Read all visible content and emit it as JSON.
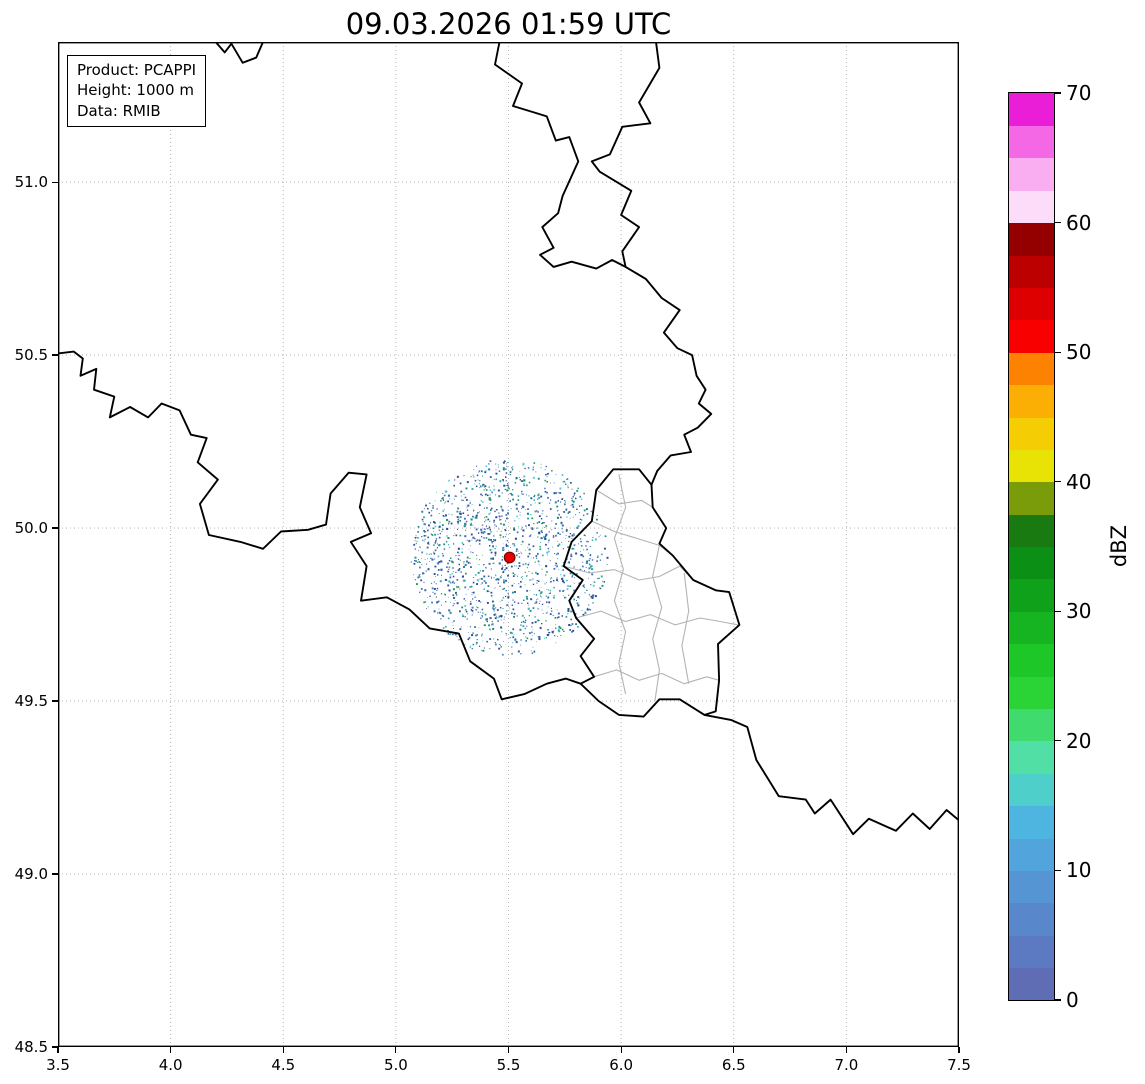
{
  "title": "09.03.2026 01:59 UTC",
  "info_box": {
    "lines": [
      "Product: PCAPPI",
      "Height: 1000 m",
      "Data: RMIB"
    ]
  },
  "axes": {
    "xlim": [
      3.5,
      7.5
    ],
    "ylim": [
      48.5,
      51.405
    ],
    "xticks": [
      3.5,
      4.0,
      4.5,
      5.0,
      5.5,
      6.0,
      6.5,
      7.0,
      7.5
    ],
    "xtick_labels": [
      "3.5",
      "4.0",
      "4.5",
      "5.0",
      "5.5",
      "6.0",
      "6.5",
      "7.0",
      "7.5"
    ],
    "yticks": [
      48.5,
      49.0,
      49.5,
      50.0,
      50.5,
      51.0
    ],
    "ytick_labels": [
      "48.5",
      "49.0",
      "49.5",
      "50.0",
      "50.5",
      "51.0"
    ],
    "grid_style": "dotted",
    "grid_color": "#ababab"
  },
  "colorbar": {
    "label": "dBZ",
    "min": 0,
    "max": 70,
    "ticks": [
      0,
      10,
      20,
      30,
      40,
      50,
      60,
      70
    ],
    "tick_labels": [
      "0",
      "10",
      "20",
      "30",
      "40",
      "50",
      "60",
      "70"
    ],
    "colors_bottom_to_top": [
      "#5e6db4",
      "#5b7ac1",
      "#5887cb",
      "#5595d4",
      "#51a4dc",
      "#4db5e0",
      "#4fcfca",
      "#52dfa5",
      "#3fdc6d",
      "#2ad437",
      "#1ec728",
      "#17b421",
      "#10a11a",
      "#0b8f14",
      "#187a10",
      "#7b9c0a",
      "#e8e304",
      "#f5cd04",
      "#fbae03",
      "#fd8202",
      "#f90000",
      "#de0000",
      "#bc0000",
      "#940000",
      "#fcdcf9",
      "#f9aef2",
      "#f467e5",
      "#ea1ed6"
    ]
  },
  "radar": {
    "site_lon": 5.505,
    "site_lat": 49.915,
    "marker_color": "#e60000",
    "marker_edge_color": "#7f0000",
    "coverage_radius_deg_lat": 0.285,
    "speckle_count": 1500,
    "seed": 1337,
    "speckle_colors": [
      {
        "color": "#2c4f9c",
        "weight": 0.3
      },
      {
        "color": "#3c68b4",
        "weight": 0.2
      },
      {
        "color": "#4e86c6",
        "weight": 0.12
      },
      {
        "color": "#1d8f85",
        "weight": 0.18
      },
      {
        "color": "#27b3a2",
        "weight": 0.1
      },
      {
        "color": "#1d9e55",
        "weight": 0.06
      },
      {
        "color": "#56c8dd",
        "weight": 0.04
      }
    ]
  },
  "map": {
    "border_color": "#000000",
    "admin_color": "#b3b3b3",
    "borders": [
      [
        [
          3.5,
          50.505
        ],
        [
          3.57,
          50.51
        ],
        [
          3.61,
          50.49
        ],
        [
          3.6,
          50.44
        ],
        [
          3.67,
          50.46
        ],
        [
          3.66,
          50.4
        ],
        [
          3.75,
          50.38
        ],
        [
          3.73,
          50.32
        ],
        [
          3.82,
          50.35
        ],
        [
          3.9,
          50.32
        ],
        [
          3.96,
          50.36
        ],
        [
          4.04,
          50.34
        ],
        [
          4.09,
          50.27
        ],
        [
          4.16,
          50.26
        ],
        [
          4.12,
          50.19
        ],
        [
          4.21,
          50.14
        ],
        [
          4.13,
          50.07
        ],
        [
          4.17,
          49.98
        ],
        [
          4.31,
          49.96
        ],
        [
          4.41,
          49.94
        ],
        [
          4.49,
          49.99
        ],
        [
          4.61,
          49.995
        ],
        [
          4.69,
          50.01
        ],
        [
          4.71,
          50.1
        ],
        [
          4.79,
          50.16
        ],
        [
          4.87,
          50.155
        ],
        [
          4.84,
          50.06
        ],
        [
          4.89,
          49.985
        ],
        [
          4.8,
          49.96
        ],
        [
          4.87,
          49.89
        ],
        [
          4.845,
          49.79
        ],
        [
          4.96,
          49.8
        ],
        [
          5.06,
          49.765
        ],
        [
          5.15,
          49.71
        ],
        [
          5.28,
          49.695
        ],
        [
          5.33,
          49.615
        ],
        [
          5.435,
          49.565
        ],
        [
          5.47,
          49.505
        ],
        [
          5.57,
          49.52
        ],
        [
          5.67,
          49.55
        ],
        [
          5.755,
          49.565
        ],
        [
          5.82,
          49.55
        ],
        [
          5.9,
          49.5
        ],
        [
          5.99,
          49.46
        ],
        [
          6.1,
          49.455
        ],
        [
          6.17,
          49.505
        ],
        [
          6.26,
          49.505
        ],
        [
          6.37,
          49.46
        ],
        [
          6.49,
          49.445
        ],
        [
          6.56,
          49.425
        ],
        [
          6.6,
          49.33
        ],
        [
          6.7,
          49.225
        ],
        [
          6.82,
          49.215
        ],
        [
          6.86,
          49.175
        ],
        [
          6.93,
          49.215
        ],
        [
          7.03,
          49.115
        ],
        [
          7.1,
          49.16
        ],
        [
          7.22,
          49.125
        ],
        [
          7.295,
          49.175
        ],
        [
          7.37,
          49.13
        ],
        [
          7.445,
          49.185
        ],
        [
          7.5,
          49.155
        ]
      ],
      [
        [
          4.2,
          51.405
        ],
        [
          4.24,
          51.375
        ],
        [
          4.27,
          51.4
        ],
        [
          4.32,
          51.345
        ],
        [
          4.38,
          51.36
        ],
        [
          4.41,
          51.405
        ]
      ],
      [
        [
          5.46,
          51.405
        ],
        [
          5.44,
          51.34
        ],
        [
          5.56,
          51.285
        ],
        [
          5.52,
          51.22
        ],
        [
          5.62,
          51.2
        ],
        [
          5.67,
          51.19
        ],
        [
          5.71,
          51.12
        ],
        [
          5.77,
          51.13
        ],
        [
          5.81,
          51.06
        ],
        [
          5.74,
          50.96
        ],
        [
          5.72,
          50.91
        ],
        [
          5.65,
          50.87
        ],
        [
          5.7,
          50.81
        ],
        [
          5.64,
          50.79
        ],
        [
          5.7,
          50.755
        ],
        [
          5.78,
          50.77
        ],
        [
          5.89,
          50.75
        ],
        [
          5.96,
          50.775
        ],
        [
          6.02,
          50.755
        ]
      ],
      [
        [
          6.02,
          50.755
        ],
        [
          6.005,
          50.8
        ],
        [
          6.08,
          50.87
        ],
        [
          6.0,
          50.905
        ],
        [
          6.045,
          50.975
        ],
        [
          5.905,
          51.03
        ],
        [
          5.87,
          51.06
        ],
        [
          5.95,
          51.08
        ],
        [
          6.005,
          51.16
        ],
        [
          6.13,
          51.17
        ],
        [
          6.08,
          51.23
        ],
        [
          6.17,
          51.33
        ],
        [
          6.155,
          51.405
        ]
      ],
      [
        [
          6.02,
          50.755
        ],
        [
          6.11,
          50.72
        ],
        [
          6.18,
          50.665
        ],
        [
          6.26,
          50.63
        ],
        [
          6.19,
          50.565
        ],
        [
          6.25,
          50.52
        ],
        [
          6.315,
          50.5
        ],
        [
          6.335,
          50.44
        ],
        [
          6.375,
          50.4
        ],
        [
          6.345,
          50.36
        ],
        [
          6.4,
          50.33
        ],
        [
          6.34,
          50.29
        ],
        [
          6.28,
          50.27
        ],
        [
          6.31,
          50.22
        ],
        [
          6.22,
          50.21
        ],
        [
          6.16,
          50.165
        ],
        [
          6.135,
          50.125
        ]
      ],
      [
        [
          6.135,
          50.125
        ],
        [
          6.14,
          50.06
        ],
        [
          6.2,
          50.0
        ],
        [
          6.17,
          49.955
        ],
        [
          6.23,
          49.92
        ],
        [
          6.32,
          49.85
        ],
        [
          6.42,
          49.82
        ],
        [
          6.48,
          49.815
        ],
        [
          6.525,
          49.72
        ],
        [
          6.43,
          49.665
        ],
        [
          6.435,
          49.56
        ],
        [
          6.42,
          49.47
        ],
        [
          6.37,
          49.46
        ]
      ],
      [
        [
          6.135,
          50.125
        ],
        [
          6.08,
          50.17
        ],
        [
          5.965,
          50.17
        ],
        [
          5.89,
          50.11
        ],
        [
          5.87,
          50.02
        ],
        [
          5.78,
          49.96
        ],
        [
          5.745,
          49.89
        ],
        [
          5.83,
          49.85
        ],
        [
          5.77,
          49.79
        ],
        [
          5.8,
          49.74
        ],
        [
          5.88,
          49.68
        ],
        [
          5.82,
          49.63
        ],
        [
          5.88,
          49.57
        ],
        [
          5.82,
          49.55
        ]
      ]
    ],
    "admin_borders": [
      [
        [
          5.99,
          50.155
        ],
        [
          6.02,
          50.06
        ],
        [
          5.97,
          49.97
        ],
        [
          6.01,
          49.88
        ],
        [
          5.97,
          49.79
        ],
        [
          6.02,
          49.7
        ],
        [
          5.99,
          49.61
        ],
        [
          6.02,
          49.52
        ]
      ],
      [
        [
          6.17,
          49.95
        ],
        [
          6.14,
          49.86
        ],
        [
          6.18,
          49.77
        ],
        [
          6.14,
          49.68
        ],
        [
          6.17,
          49.59
        ],
        [
          6.15,
          49.5
        ]
      ],
      [
        [
          5.89,
          50.11
        ],
        [
          5.99,
          50.07
        ],
        [
          6.09,
          50.08
        ],
        [
          6.14,
          50.06
        ]
      ],
      [
        [
          5.87,
          50.02
        ],
        [
          5.97,
          49.99
        ],
        [
          6.07,
          49.97
        ],
        [
          6.17,
          49.95
        ],
        [
          6.23,
          49.92
        ]
      ],
      [
        [
          5.745,
          49.89
        ],
        [
          5.86,
          49.87
        ],
        [
          5.97,
          49.88
        ],
        [
          6.08,
          49.85
        ],
        [
          6.17,
          49.86
        ],
        [
          6.26,
          49.89
        ],
        [
          6.32,
          49.85
        ]
      ],
      [
        [
          5.8,
          49.74
        ],
        [
          5.91,
          49.76
        ],
        [
          6.02,
          49.73
        ],
        [
          6.13,
          49.75
        ],
        [
          6.24,
          49.72
        ],
        [
          6.35,
          49.74
        ],
        [
          6.44,
          49.73
        ],
        [
          6.52,
          49.72
        ]
      ],
      [
        [
          5.88,
          49.57
        ],
        [
          5.98,
          49.59
        ],
        [
          6.08,
          49.56
        ],
        [
          6.18,
          49.58
        ],
        [
          6.28,
          49.55
        ],
        [
          6.38,
          49.57
        ],
        [
          6.435,
          49.56
        ]
      ],
      [
        [
          6.28,
          49.87
        ],
        [
          6.3,
          49.76
        ],
        [
          6.27,
          49.66
        ],
        [
          6.3,
          49.55
        ]
      ]
    ]
  }
}
